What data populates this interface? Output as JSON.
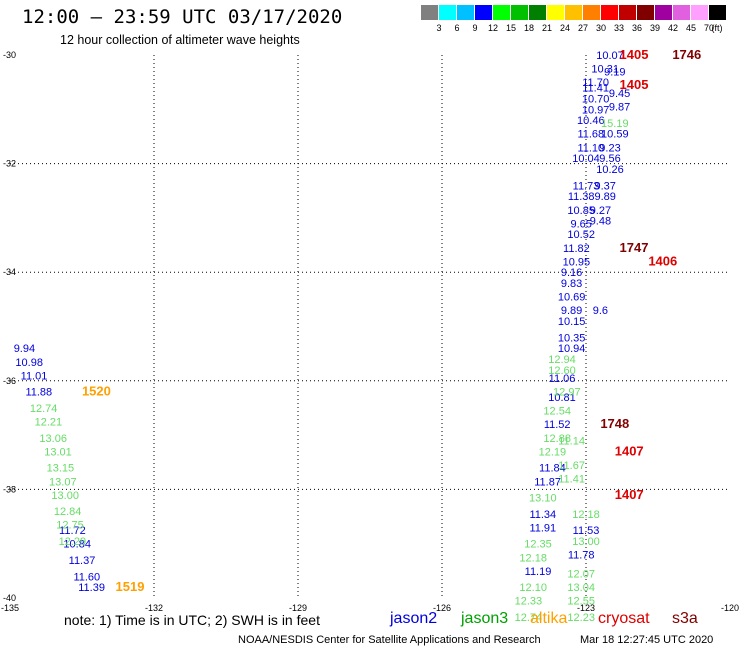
{
  "title": "12:00 — 23:59 UTC 03/17/2020",
  "subtitle": "12 hour collection of altimeter wave heights",
  "legend_scale": {
    "unit_label": "(ft)",
    "bins": [
      {
        "label": "3",
        "color": "#808080"
      },
      {
        "label": "6",
        "color": "#00ffff"
      },
      {
        "label": "9",
        "color": "#00c0ff"
      },
      {
        "label": "12",
        "color": "#0000ff"
      },
      {
        "label": "15",
        "color": "#00ff00"
      },
      {
        "label": "18",
        "color": "#00c000"
      },
      {
        "label": "21",
        "color": "#008000"
      },
      {
        "label": "24",
        "color": "#ffff00"
      },
      {
        "label": "27",
        "color": "#ffc000"
      },
      {
        "label": "30",
        "color": "#ff8000"
      },
      {
        "label": "33",
        "color": "#ff0000"
      },
      {
        "label": "36",
        "color": "#c00000"
      },
      {
        "label": "39",
        "color": "#800000"
      },
      {
        "label": "42",
        "color": "#a000a0"
      },
      {
        "label": "45",
        "color": "#e060e0"
      },
      {
        "label": "70",
        "color": "#ffa0ff"
      },
      {
        "label": "",
        "color": "#000000"
      }
    ]
  },
  "note": "note:  1) Time is in UTC;  2) SWH is in feet",
  "satellites": [
    {
      "name": "jason2",
      "color": "#0000dd"
    },
    {
      "name": "jason3",
      "color": "#00a000"
    },
    {
      "name": "altika",
      "color": "#ffa000"
    },
    {
      "name": "cryosat",
      "color": "#dd0000"
    },
    {
      "name": "s3a",
      "color": "#800000"
    }
  ],
  "footer": "NOAA/NESDIS Center for Satellite Applications and Research",
  "timestamp": "Mar 18 12:27:45 UTC 2020",
  "chart_data": {
    "type": "scatter",
    "title": "12:00 — 23:59 UTC 03/17/2020",
    "xlabel": "",
    "ylabel": "",
    "xlim": [
      -135,
      -120
    ],
    "ylim": [
      -40,
      -30
    ],
    "x_ticks": [
      "-135",
      "-132",
      "-129",
      "-126",
      "-123",
      "-120"
    ],
    "y_ticks": [
      "-30",
      "-32",
      "-34",
      "-36",
      "-38",
      "-40"
    ],
    "grid": true,
    "grid_style": "dotted",
    "series": [
      {
        "name": "jason2",
        "color": "#0000dd",
        "points": [
          {
            "lon": -134.7,
            "lat": -35.4,
            "label": "9.94"
          },
          {
            "lon": -134.6,
            "lat": -35.65,
            "label": "10.98"
          },
          {
            "lon": -134.5,
            "lat": -35.9,
            "label": "11.01"
          },
          {
            "lon": -134.4,
            "lat": -36.2,
            "label": "11.88"
          },
          {
            "lon": -133.7,
            "lat": -38.75,
            "label": "11.72"
          },
          {
            "lon": -133.6,
            "lat": -39.0,
            "label": "10.84"
          },
          {
            "lon": -133.5,
            "lat": -39.3,
            "label": "11.37"
          },
          {
            "lon": -133.4,
            "lat": -39.6,
            "label": "11.60"
          },
          {
            "lon": -133.3,
            "lat": -39.8,
            "label": "11.39"
          },
          {
            "lon": -122.5,
            "lat": -30.0,
            "label": "10.07"
          },
          {
            "lon": -122.6,
            "lat": -30.25,
            "label": "10.31"
          },
          {
            "lon": -122.8,
            "lat": -30.5,
            "label": "11.70"
          },
          {
            "lon": -122.8,
            "lat": -30.6,
            "label": "11.41"
          },
          {
            "lon": -122.8,
            "lat": -30.8,
            "label": "10.70"
          },
          {
            "lon": -122.8,
            "lat": -31.0,
            "label": "10.97"
          },
          {
            "lon": -122.9,
            "lat": -31.2,
            "label": "10.46"
          },
          {
            "lon": -122.9,
            "lat": -31.45,
            "label": "11.68"
          },
          {
            "lon": -122.9,
            "lat": -31.7,
            "label": "11.10"
          },
          {
            "lon": -123.0,
            "lat": -31.9,
            "label": "10.04"
          },
          {
            "lon": -123.0,
            "lat": -32.4,
            "label": "11.73"
          },
          {
            "lon": -123.1,
            "lat": -32.6,
            "label": "11.38"
          },
          {
            "lon": -123.1,
            "lat": -32.85,
            "label": "10.85"
          },
          {
            "lon": -123.1,
            "lat": -33.1,
            "label": "9.65"
          },
          {
            "lon": -123.1,
            "lat": -33.3,
            "label": "10.52"
          },
          {
            "lon": -123.2,
            "lat": -33.55,
            "label": "11.82"
          },
          {
            "lon": -123.2,
            "lat": -33.8,
            "label": "10.95"
          },
          {
            "lon": -123.3,
            "lat": -34.0,
            "label": "9.16"
          },
          {
            "lon": -123.3,
            "lat": -34.2,
            "label": "9.83"
          },
          {
            "lon": -123.3,
            "lat": -34.45,
            "label": "10.69"
          },
          {
            "lon": -123.3,
            "lat": -34.7,
            "label": "9.89"
          },
          {
            "lon": -123.3,
            "lat": -34.9,
            "label": "10.15"
          },
          {
            "lon": -123.3,
            "lat": -35.2,
            "label": "10.35"
          },
          {
            "lon": -123.3,
            "lat": -35.4,
            "label": "10.94"
          },
          {
            "lon": -123.5,
            "lat": -35.95,
            "label": "11.06"
          },
          {
            "lon": -123.5,
            "lat": -36.3,
            "label": "10.81"
          },
          {
            "lon": -123.6,
            "lat": -36.8,
            "label": "11.52"
          },
          {
            "lon": -123.7,
            "lat": -37.6,
            "label": "11.84"
          },
          {
            "lon": -123.8,
            "lat": -37.85,
            "label": "11.87"
          },
          {
            "lon": -123.9,
            "lat": -38.45,
            "label": "11.34"
          },
          {
            "lon": -123.9,
            "lat": -38.7,
            "label": "11.91"
          },
          {
            "lon": -124.0,
            "lat": -39.5,
            "label": "11.19"
          },
          {
            "lon": -122.4,
            "lat": -30.3,
            "label": "9.19"
          },
          {
            "lon": -122.3,
            "lat": -30.7,
            "label": "9.45"
          },
          {
            "lon": -122.3,
            "lat": -30.95,
            "label": "9.87"
          },
          {
            "lon": -122.4,
            "lat": -31.45,
            "label": "10.59"
          },
          {
            "lon": -122.5,
            "lat": -31.7,
            "label": "9.23"
          },
          {
            "lon": -122.5,
            "lat": -31.9,
            "label": "9.56"
          },
          {
            "lon": -122.5,
            "lat": -32.1,
            "label": "10.26"
          },
          {
            "lon": -122.6,
            "lat": -32.4,
            "label": "9.37"
          },
          {
            "lon": -122.6,
            "lat": -32.6,
            "label": "9.89"
          },
          {
            "lon": -122.7,
            "lat": -32.85,
            "label": "9.27"
          },
          {
            "lon": -122.7,
            "lat": -33.05,
            "label": "9.48"
          },
          {
            "lon": -122.7,
            "lat": -34.7,
            "label": "9.6"
          },
          {
            "lon": -123.0,
            "lat": -38.75,
            "label": "11.53"
          },
          {
            "lon": -123.1,
            "lat": -39.2,
            "label": "11.78"
          }
        ]
      },
      {
        "name": "jason3",
        "color": "#66dd66",
        "points": [
          {
            "lon": -134.3,
            "lat": -36.5,
            "label": "12.74"
          },
          {
            "lon": -134.2,
            "lat": -36.75,
            "label": "12.21"
          },
          {
            "lon": -134.1,
            "lat": -37.05,
            "label": "13.06"
          },
          {
            "lon": -134.0,
            "lat": -37.3,
            "label": "13.01"
          },
          {
            "lon": -133.95,
            "lat": -37.6,
            "label": "13.15"
          },
          {
            "lon": -133.9,
            "lat": -37.85,
            "label": "13.07"
          },
          {
            "lon": -133.85,
            "lat": -38.1,
            "label": "13.00"
          },
          {
            "lon": -133.8,
            "lat": -38.4,
            "label": "12.84"
          },
          {
            "lon": -133.75,
            "lat": -38.65,
            "label": "12.75"
          },
          {
            "lon": -133.7,
            "lat": -38.95,
            "label": "12.29"
          },
          {
            "lon": -122.4,
            "lat": -31.25,
            "label": "15.19"
          },
          {
            "lon": -123.5,
            "lat": -35.6,
            "label": "12.94"
          },
          {
            "lon": -123.5,
            "lat": -35.8,
            "label": "12.60"
          },
          {
            "lon": -123.4,
            "lat": -36.2,
            "label": "12.97"
          },
          {
            "lon": -123.6,
            "lat": -36.55,
            "label": "12.54"
          },
          {
            "lon": -123.6,
            "lat": -37.05,
            "label": "12.88"
          },
          {
            "lon": -123.7,
            "lat": -37.3,
            "label": "12.19"
          },
          {
            "lon": -123.9,
            "lat": -38.15,
            "label": "13.10"
          },
          {
            "lon": -123.0,
            "lat": -38.45,
            "label": "12.18"
          },
          {
            "lon": -124.0,
            "lat": -39.0,
            "label": "12.35"
          },
          {
            "lon": -124.1,
            "lat": -39.25,
            "label": "12.18"
          },
          {
            "lon": -124.1,
            "lat": -39.8,
            "label": "12.10"
          },
          {
            "lon": -124.2,
            "lat": -40.05,
            "label": "12.33"
          },
          {
            "lon": -124.2,
            "lat": -40.35,
            "label": "12.74"
          },
          {
            "lon": -123.1,
            "lat": -39.55,
            "label": "12.07"
          },
          {
            "lon": -123.1,
            "lat": -39.8,
            "label": "13.04"
          },
          {
            "lon": -123.1,
            "lat": -40.05,
            "label": "12.55"
          },
          {
            "lon": -123.1,
            "lat": -40.35,
            "label": "12.23"
          },
          {
            "lon": -123.0,
            "lat": -38.95,
            "label": "13.00"
          },
          {
            "lon": -123.3,
            "lat": -37.1,
            "label": "11.14"
          },
          {
            "lon": -123.3,
            "lat": -37.55,
            "label": "11.67"
          },
          {
            "lon": -123.3,
            "lat": -37.8,
            "label": "11.41"
          }
        ]
      },
      {
        "name": "altika",
        "color": "#ffa000",
        "points": [
          {
            "lon": -133.2,
            "lat": -36.2,
            "label": "1520"
          },
          {
            "lon": -132.5,
            "lat": -39.8,
            "label": "1519"
          }
        ]
      },
      {
        "name": "cryosat",
        "color": "#dd0000",
        "points": [
          {
            "lon": -122.0,
            "lat": -30.0,
            "label": "1405"
          },
          {
            "lon": -122.0,
            "lat": -30.55,
            "label": "1405"
          },
          {
            "lon": -121.4,
            "lat": -33.8,
            "label": "1406"
          },
          {
            "lon": -122.1,
            "lat": -37.3,
            "label": "1407"
          },
          {
            "lon": -122.1,
            "lat": -38.1,
            "label": "1407"
          }
        ]
      },
      {
        "name": "s3a",
        "color": "#800000",
        "points": [
          {
            "lon": -120.9,
            "lat": -30.0,
            "label": "1746"
          },
          {
            "lon": -122.0,
            "lat": -33.55,
            "label": "1747"
          },
          {
            "lon": -122.4,
            "lat": -36.8,
            "label": "1748"
          }
        ]
      }
    ]
  }
}
